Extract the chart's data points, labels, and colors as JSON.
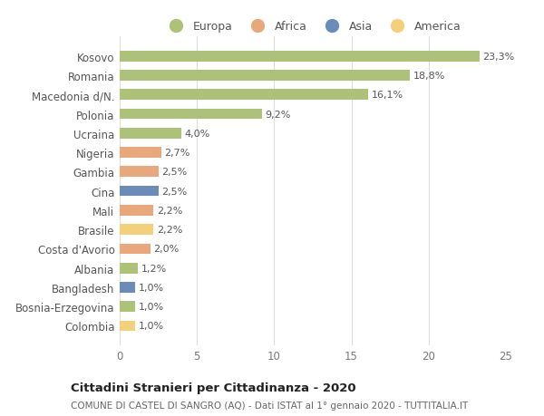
{
  "categories": [
    "Kosovo",
    "Romania",
    "Macedonia d/N.",
    "Polonia",
    "Ucraina",
    "Nigeria",
    "Gambia",
    "Cina",
    "Mali",
    "Brasile",
    "Costa d'Avorio",
    "Albania",
    "Bangladesh",
    "Bosnia-Erzegovina",
    "Colombia"
  ],
  "values": [
    23.3,
    18.8,
    16.1,
    9.2,
    4.0,
    2.7,
    2.5,
    2.5,
    2.2,
    2.2,
    2.0,
    1.2,
    1.0,
    1.0,
    1.0
  ],
  "labels": [
    "23,3%",
    "18,8%",
    "16,1%",
    "9,2%",
    "4,0%",
    "2,7%",
    "2,5%",
    "2,5%",
    "2,2%",
    "2,2%",
    "2,0%",
    "1,2%",
    "1,0%",
    "1,0%",
    "1,0%"
  ],
  "colors": [
    "#adc178",
    "#adc178",
    "#adc178",
    "#adc178",
    "#adc178",
    "#e8a87c",
    "#e8a87c",
    "#6b8cba",
    "#e8a87c",
    "#f5d07a",
    "#e8a87c",
    "#adc178",
    "#6b8cba",
    "#adc178",
    "#f5d07a"
  ],
  "continent_colors": {
    "Europa": "#adc178",
    "Africa": "#e8a87c",
    "Asia": "#6b8cba",
    "America": "#f5d07a"
  },
  "legend_labels": [
    "Europa",
    "Africa",
    "Asia",
    "America"
  ],
  "title_main": "Cittadini Stranieri per Cittadinanza - 2020",
  "title_sub": "COMUNE DI CASTEL DI SANGRO (AQ) - Dati ISTAT al 1° gennaio 2020 - TUTTITALIA.IT",
  "xlim": [
    0,
    25
  ],
  "xticks": [
    0,
    5,
    10,
    15,
    20,
    25
  ],
  "background_color": "#ffffff",
  "grid_color": "#dddddd"
}
